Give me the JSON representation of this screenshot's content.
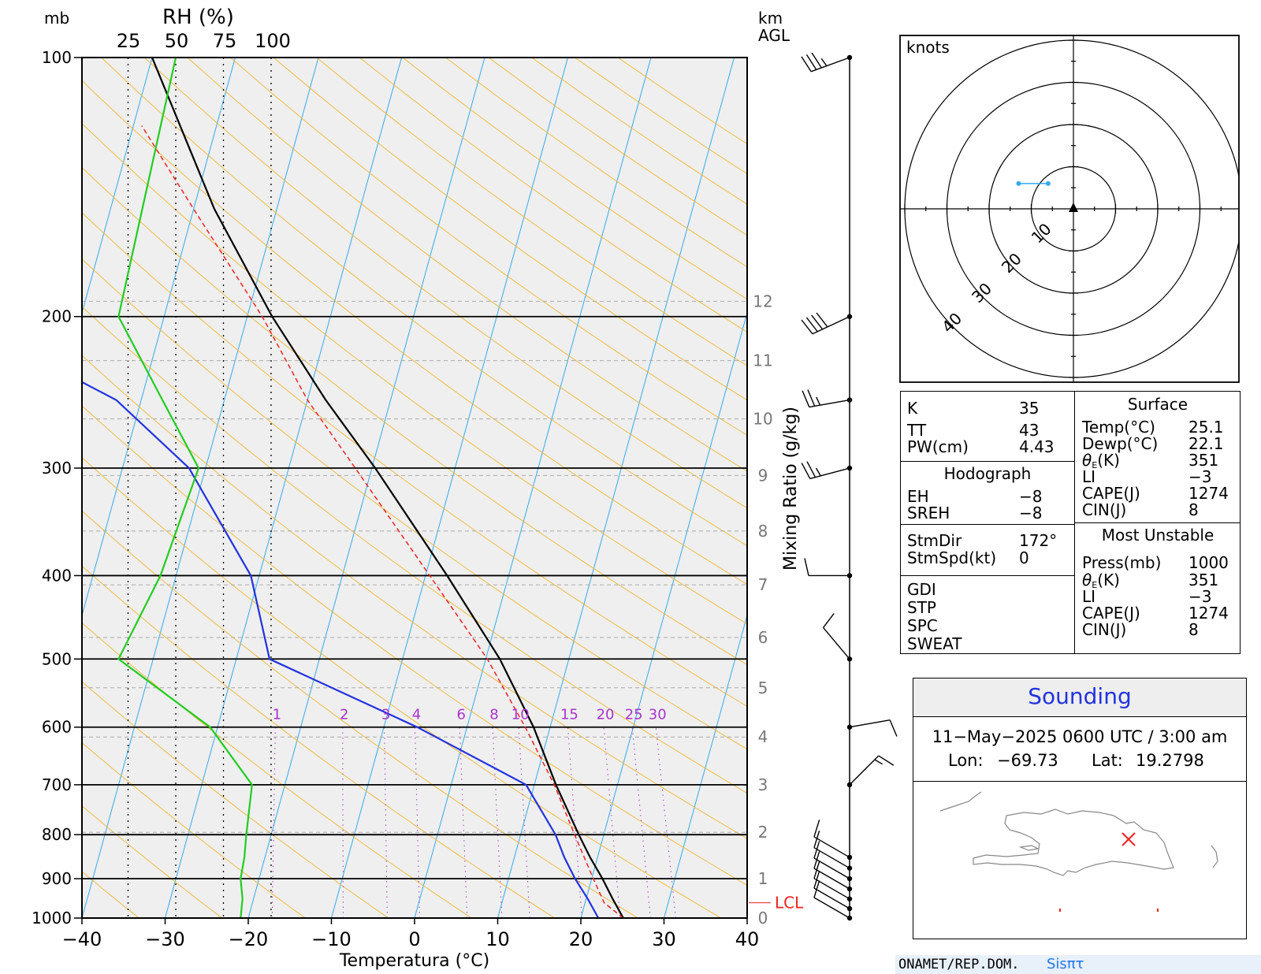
{
  "skewt": {
    "left_top_label": "mb",
    "rh_title": "RH (%)",
    "rh_ticks": [
      "25",
      "50",
      "75",
      "100"
    ],
    "km_label": "km",
    "agl_label": "AGL",
    "pressure_ticks": [
      "100",
      "200",
      "300",
      "400",
      "500",
      "600",
      "700",
      "800",
      "900",
      "1000"
    ],
    "temp_ticks": [
      "−40",
      "−30",
      "−20",
      "−10",
      "0",
      "10",
      "20",
      "30",
      "40"
    ],
    "xlabel": "Temperatura (°C)",
    "mixing_label": "Mixing Ratio (g/kg)",
    "mixing_ticks": [
      "1",
      "2",
      "3",
      "4",
      "6",
      "8",
      "10",
      "15",
      "20",
      "25",
      "30"
    ],
    "height_ticks": [
      "0",
      "1",
      "2",
      "3",
      "4",
      "5",
      "6",
      "7",
      "8",
      "9",
      "10",
      "11",
      "12"
    ],
    "lcl_label": "LCL",
    "colors": {
      "temperature": "#000000",
      "dewpoint": "#2233dd",
      "rh": "#22cc22",
      "parcel": "#ee2222",
      "isotherm": "#33aaee",
      "adiabat": "#eebb44",
      "mixing": "#aa33cc",
      "panel_bg": "#efefef"
    }
  },
  "chart_data": [
    {
      "type": "line",
      "title": "",
      "xlabel": "Temperatura (°C)",
      "ylabel": "mb",
      "xlim": [
        -40,
        40
      ],
      "ylim": [
        1000,
        100
      ],
      "y_scale": "log",
      "grid": true,
      "series": [
        {
          "kind": "temperature",
          "p": [
            1000,
            950,
            900,
            850,
            800,
            700,
            600,
            500,
            400,
            300,
            250,
            200,
            150,
            100
          ],
          "t": [
            25.1,
            23.2,
            21.3,
            19.1,
            17.0,
            12.6,
            8.0,
            1.7,
            -7.4,
            -19.6,
            -27.8,
            -37.0,
            -47.5,
            -60.0
          ]
        },
        {
          "kind": "dewpoint",
          "p": [
            1000,
            950,
            900,
            850,
            800,
            700,
            600,
            500,
            400,
            300,
            250,
            200,
            150,
            100
          ],
          "t": [
            22.1,
            20.2,
            18.0,
            16.0,
            14.2,
            9.0,
            -6.0,
            -26.0,
            -31.0,
            -42.0,
            -53.0,
            -75.0,
            -80.0,
            -85.0
          ]
        },
        {
          "kind": "parcel",
          "p": [
            1000,
            960,
            900,
            800,
            700,
            600,
            500,
            400,
            300,
            250,
            200,
            150,
            120
          ],
          "t": [
            25.1,
            22.3,
            20.2,
            16.5,
            12.4,
            7.0,
            0.2,
            -9.5,
            -22.0,
            -30.0,
            -38.2,
            -50.0,
            -59.0
          ]
        },
        {
          "kind": "rh",
          "p": [
            1000,
            950,
            900,
            850,
            800,
            700,
            600,
            500,
            400,
            300,
            250,
            200,
            100
          ],
          "rh": [
            84,
            85,
            84,
            86,
            87,
            90,
            68,
            20,
            42,
            62,
            43,
            20,
            50
          ]
        }
      ]
    },
    {
      "type": "scatter",
      "title": "knots",
      "rings": [
        "10",
        "20",
        "30",
        "40"
      ],
      "points": [
        [
          -13,
          6
        ],
        [
          -6,
          6
        ]
      ]
    }
  ],
  "wind_profile": {
    "levels": [
      "100",
      "200",
      "250",
      "300",
      "400",
      "500",
      "600",
      "700",
      "850",
      "875",
      "900",
      "925",
      "950",
      "975",
      "1000"
    ],
    "speed_kt": [
      35,
      40,
      25,
      25,
      10,
      10,
      10,
      15,
      10,
      10,
      10,
      10,
      10,
      10,
      10
    ]
  },
  "indices": {
    "k_label": "K",
    "k_value": "35",
    "tt_label": "TT",
    "tt_value": "43",
    "pw_label": "PW(cm)",
    "pw_value": "4.43",
    "hodograph_header": "Hodograph",
    "eh_label": "EH",
    "eh_value": "−8",
    "sreh_label": "SREH",
    "sreh_value": "−8",
    "stmdir_label": "StmDir",
    "stmdir_value": "172°",
    "stmspd_label": "StmSpd(kt)",
    "stmspd_value": "0",
    "gdi_label": "GDI",
    "stp_label": "STP",
    "spc_label": "SPC",
    "sweat_label": "SWEAT",
    "surface_header": "Surface",
    "temp_label": "Temp(°C)",
    "temp_value": "25.1",
    "dewp_label": "Dewp(°C)",
    "dewp_value": "22.1",
    "theta_label": "θ",
    "theta_sub": "E",
    "theta_unit": "(K)",
    "theta_value": "351",
    "li_label": "LI",
    "li_value": "−3",
    "cape_label": "CAPE(J)",
    "cape_value": "1274",
    "cin_label": "CIN(J)",
    "cin_value": "8",
    "mu_header": "Most Unstable",
    "mu_press_label": "Press(mb)",
    "mu_press_value": "1000",
    "mu_theta_value": "351",
    "mu_li_value": "−3",
    "mu_cape_value": "1274",
    "mu_cin_value": "8"
  },
  "sounding": {
    "title": "Sounding",
    "datetime": "11−May−2025 0600  UTC / 3:00  am",
    "lon_label": "Lon:",
    "lon_value": "−69.73",
    "lat_label": "Lat:",
    "lat_value": "19.2798"
  },
  "footer": {
    "org": "ONAMET/REP.DOM.",
    "app": "Sisπτ"
  }
}
